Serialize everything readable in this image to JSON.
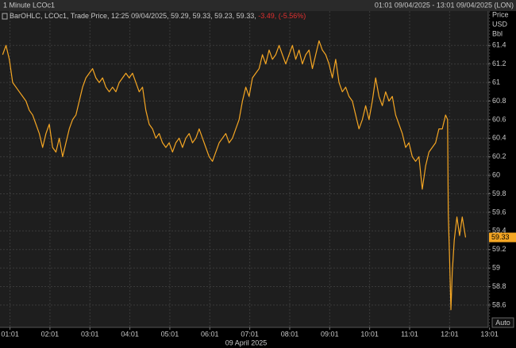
{
  "chart_data": {
    "type": "line",
    "header_title": "1 Minute LCOc1",
    "header_range": "01:01 09/04/2025 - 13:01 09/04/2025 (LON)",
    "legend": {
      "prefix": "BarOHLC, LCOc1, Trade Price, 12:25 09/04/2025, 59.29, 59.33, 59.23, 59.33,",
      "change": "-3.49, (-5.56%)"
    },
    "y_axis_label": [
      "Price",
      "USD",
      "Bbl"
    ],
    "x_axis_label": "09 April 2025",
    "auto_button": "Auto",
    "last_price": 59.33,
    "last_price_color": "#f5a623",
    "x": [
      "00:50",
      "00:55",
      "01:00",
      "01:05",
      "01:10",
      "01:15",
      "01:20",
      "01:25",
      "01:30",
      "01:35",
      "01:40",
      "01:45",
      "01:50",
      "01:55",
      "02:00",
      "02:05",
      "02:10",
      "02:15",
      "02:20",
      "02:25",
      "02:30",
      "02:35",
      "02:40",
      "02:45",
      "02:50",
      "02:55",
      "03:00",
      "03:05",
      "03:10",
      "03:15",
      "03:20",
      "03:25",
      "03:30",
      "03:35",
      "03:40",
      "03:45",
      "03:50",
      "03:55",
      "04:00",
      "04:05",
      "04:10",
      "04:15",
      "04:20",
      "04:25",
      "04:30",
      "04:35",
      "04:40",
      "04:45",
      "04:50",
      "04:55",
      "05:00",
      "05:05",
      "05:10",
      "05:15",
      "05:20",
      "05:25",
      "05:30",
      "05:35",
      "05:40",
      "05:45",
      "05:50",
      "05:55",
      "06:00",
      "06:05",
      "06:10",
      "06:15",
      "06:20",
      "06:25",
      "06:30",
      "06:35",
      "06:40",
      "06:45",
      "06:50",
      "06:55",
      "07:00",
      "07:05",
      "07:10",
      "07:15",
      "07:20",
      "07:25",
      "07:30",
      "07:35",
      "07:40",
      "07:45",
      "07:50",
      "07:55",
      "08:00",
      "08:05",
      "08:10",
      "08:15",
      "08:20",
      "08:25",
      "08:30",
      "08:35",
      "08:40",
      "08:45",
      "08:50",
      "08:55",
      "09:00",
      "09:05",
      "09:10",
      "09:15",
      "09:20",
      "09:25",
      "09:30",
      "09:35",
      "09:40",
      "09:45",
      "09:50",
      "09:55",
      "10:00",
      "10:05",
      "10:10",
      "10:15",
      "10:20",
      "10:25",
      "10:30",
      "10:35",
      "10:40",
      "10:45",
      "10:50",
      "10:55",
      "11:00",
      "11:05",
      "11:10",
      "11:15",
      "11:20",
      "11:25",
      "11:30",
      "11:35",
      "11:40",
      "11:45",
      "11:50",
      "11:55",
      "11:58",
      "11:59",
      "12:01",
      "12:03",
      "12:05",
      "12:08",
      "12:12",
      "12:16",
      "12:20",
      "12:25"
    ],
    "series": [
      {
        "name": "LCOc1",
        "color": "#f5a623",
        "values": [
          61.3,
          61.4,
          61.25,
          61.0,
          60.95,
          60.9,
          60.85,
          60.8,
          60.7,
          60.65,
          60.55,
          60.45,
          60.3,
          60.45,
          60.55,
          60.3,
          60.25,
          60.4,
          60.2,
          60.35,
          60.5,
          60.6,
          60.65,
          60.8,
          60.95,
          61.05,
          61.1,
          61.15,
          61.05,
          61.0,
          61.05,
          60.95,
          60.9,
          60.95,
          60.9,
          61.0,
          61.05,
          61.1,
          61.05,
          61.1,
          61.0,
          60.9,
          60.95,
          60.7,
          60.55,
          60.5,
          60.4,
          60.45,
          60.35,
          60.3,
          60.35,
          60.25,
          60.35,
          60.4,
          60.3,
          60.4,
          60.45,
          60.35,
          60.4,
          60.5,
          60.4,
          60.3,
          60.2,
          60.15,
          60.25,
          60.35,
          60.4,
          60.45,
          60.35,
          60.4,
          60.5,
          60.6,
          60.8,
          60.95,
          60.85,
          61.05,
          61.1,
          61.15,
          61.3,
          61.2,
          61.35,
          61.25,
          61.3,
          61.4,
          61.3,
          61.2,
          61.3,
          61.4,
          61.25,
          61.35,
          61.2,
          61.3,
          61.35,
          61.15,
          61.3,
          61.45,
          61.35,
          61.3,
          61.2,
          61.05,
          61.25,
          61.0,
          60.9,
          60.95,
          60.85,
          60.8,
          60.65,
          60.5,
          60.6,
          60.75,
          60.6,
          60.8,
          61.05,
          60.85,
          60.75,
          60.9,
          60.8,
          60.85,
          60.65,
          60.55,
          60.45,
          60.3,
          60.35,
          60.2,
          60.15,
          60.2,
          59.85,
          60.1,
          60.25,
          60.3,
          60.35,
          60.5,
          60.5,
          60.65,
          60.6,
          59.6,
          59.1,
          58.55,
          58.95,
          59.3,
          59.55,
          59.35,
          59.55,
          59.33
        ]
      }
    ],
    "xlim": [
      "00:46",
      "12:59"
    ],
    "xticks": [
      "01:01",
      "02:01",
      "03:01",
      "04:01",
      "05:01",
      "06:01",
      "07:01",
      "08:01",
      "09:01",
      "10:01",
      "11:01",
      "12:01",
      "13:01"
    ],
    "ylim": [
      58.36,
      61.77
    ],
    "yticks": [
      58.6,
      58.8,
      59,
      59.2,
      59.4,
      59.6,
      59.8,
      60,
      60.2,
      60.4,
      60.6,
      60.8,
      61,
      61.2,
      61.4
    ],
    "grid": true
  }
}
